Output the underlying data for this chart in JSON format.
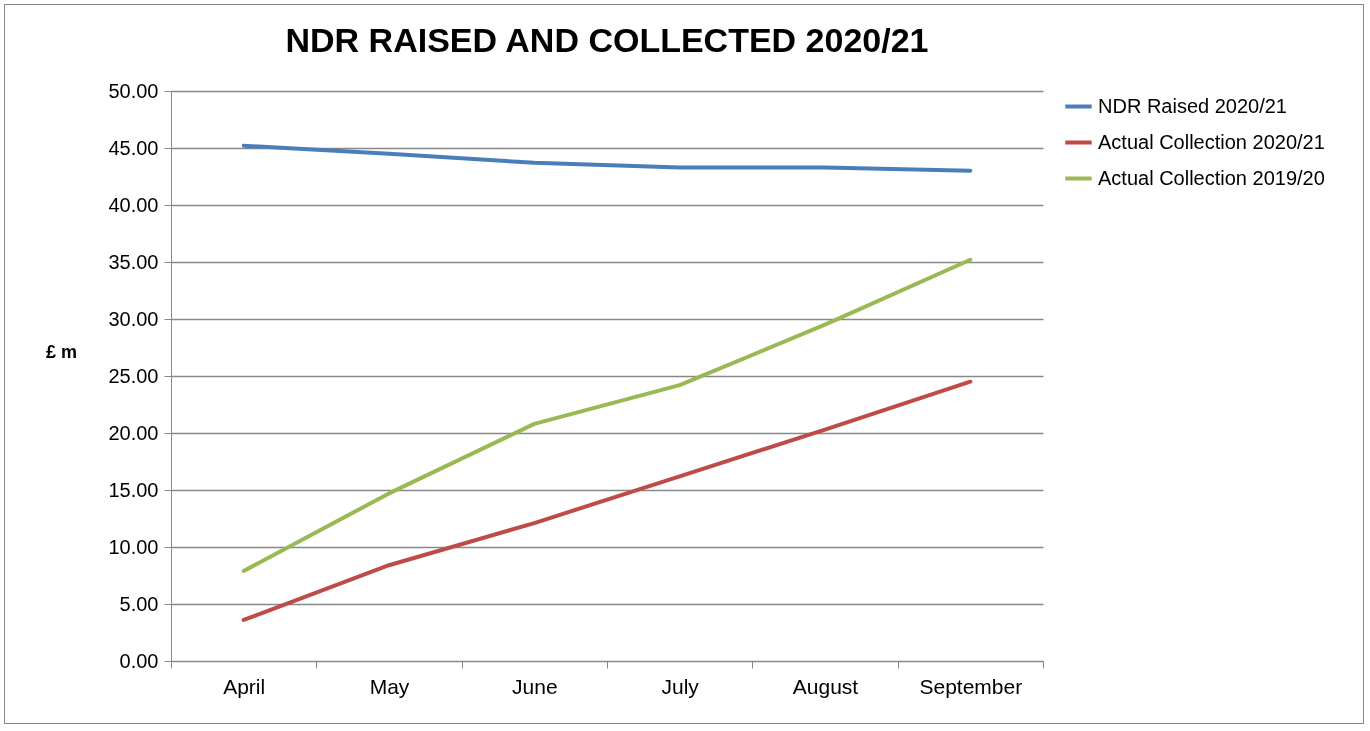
{
  "chart_data": {
    "type": "line",
    "title": "NDR RAISED AND COLLECTED 2020/21",
    "ylabel": "£ m",
    "categories": [
      "April",
      "May",
      "June",
      "July",
      "August",
      "September"
    ],
    "series": [
      {
        "name": "NDR Raised 2020/21",
        "color": "#4a7ebb",
        "values": [
          45.2,
          44.5,
          43.7,
          43.3,
          43.3,
          43.0
        ]
      },
      {
        "name": "Actual Collection 2020/21",
        "color": "#be4b48",
        "values": [
          3.6,
          8.4,
          12.1,
          16.2,
          20.3,
          24.5
        ]
      },
      {
        "name": "Actual Collection 2019/20",
        "color": "#98b954",
        "values": [
          7.9,
          14.7,
          20.8,
          24.2,
          29.5,
          35.2
        ]
      }
    ],
    "ylim": [
      0,
      50
    ],
    "yticks": [
      {
        "value": 0,
        "label": "0.00"
      },
      {
        "value": 5,
        "label": "5.00"
      },
      {
        "value": 10,
        "label": "10.00"
      },
      {
        "value": 15,
        "label": "15.00"
      },
      {
        "value": 20,
        "label": "20.00"
      },
      {
        "value": 25,
        "label": "25.00"
      },
      {
        "value": 30,
        "label": "30.00"
      },
      {
        "value": 35,
        "label": "35.00"
      },
      {
        "value": 40,
        "label": "40.00"
      },
      {
        "value": 45,
        "label": "45.00"
      },
      {
        "value": 50,
        "label": "50.00"
      }
    ],
    "grid": "y",
    "legend": "right",
    "marker": "none",
    "line_style": "solid"
  }
}
